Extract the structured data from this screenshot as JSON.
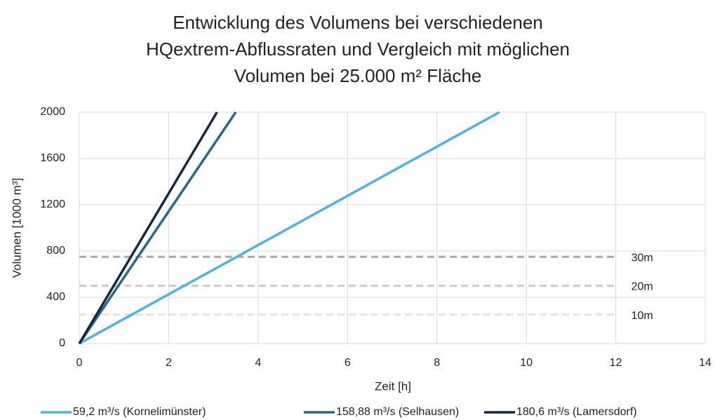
{
  "chart_data": {
    "type": "line",
    "title": [
      "Entwicklung des Volumens bei verschiedenen",
      "HQextrem-Abflussraten und Vergleich mit möglichen",
      "Volumen bei 25.000 m² Fläche"
    ],
    "x_label": "Zeit [h]",
    "y_label": "Volumen [1000 m³]",
    "xlim": [
      0,
      14
    ],
    "xticks": [
      0,
      2,
      4,
      6,
      8,
      10,
      12,
      14
    ],
    "ylim": [
      0,
      2000
    ],
    "yticks": [
      0,
      400,
      800,
      1200,
      1600,
      2000
    ],
    "grid": true,
    "legend": "bottom",
    "series": [
      {
        "name": "59,2 m³/s (Kornelimünster)",
        "color": "#4eb3e3",
        "x": [
          0,
          9.4
        ],
        "values": [
          0,
          2000
        ]
      },
      {
        "name": "158,88 m³/s (Selhausen)",
        "color": "#23698a",
        "x": [
          0,
          3.5
        ],
        "values": [
          0,
          2000
        ]
      },
      {
        "name": "180,6 m³/s (Lamersdorf)",
        "color": "#17273f",
        "x": [
          0,
          3.08
        ],
        "values": [
          0,
          2000
        ]
      }
    ],
    "reference_lines": [
      {
        "name": "30m",
        "color": "#a9a9a9",
        "x": [
          0,
          12
        ],
        "values": [
          750,
          750
        ]
      },
      {
        "name": "20m",
        "color": "#cbcbcb",
        "x": [
          0,
          12
        ],
        "values": [
          500,
          500
        ]
      },
      {
        "name": "10m",
        "color": "#e2e2e2",
        "x": [
          0,
          12
        ],
        "values": [
          250,
          250
        ]
      }
    ]
  }
}
